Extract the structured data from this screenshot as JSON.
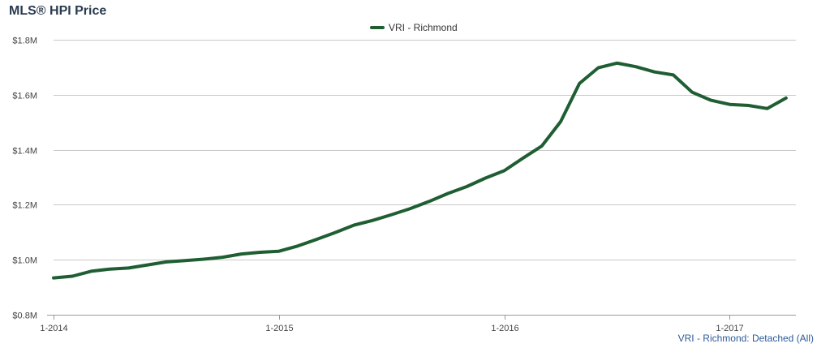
{
  "header": {
    "title": "MLS® HPI Price"
  },
  "footnote": "VRI - Richmond: Detached (All)",
  "chart_data": {
    "type": "line",
    "title": "MLS® HPI Price",
    "xlabel": "",
    "ylabel": "",
    "x_tick_labels": [
      "1-2014",
      "1-2015",
      "1-2016",
      "1-2017"
    ],
    "y_tick_labels": [
      "$0.8M",
      "$1.0M",
      "$1.2M",
      "$1.4M",
      "$1.6M",
      "$1.8M"
    ],
    "y_ticks": [
      0.8,
      1.0,
      1.2,
      1.4,
      1.6,
      1.8
    ],
    "ylim": [
      0.8,
      1.8
    ],
    "grid": "horizontal",
    "legend_position": "top-center",
    "series_color": "#1f5e33",
    "x": [
      "2014-01",
      "2014-02",
      "2014-03",
      "2014-04",
      "2014-05",
      "2014-06",
      "2014-07",
      "2014-08",
      "2014-09",
      "2014-10",
      "2014-11",
      "2014-12",
      "2015-01",
      "2015-02",
      "2015-03",
      "2015-04",
      "2015-05",
      "2015-06",
      "2015-07",
      "2015-08",
      "2015-09",
      "2015-10",
      "2015-11",
      "2015-12",
      "2016-01",
      "2016-02",
      "2016-03",
      "2016-04",
      "2016-05",
      "2016-06",
      "2016-07",
      "2016-08",
      "2016-09",
      "2016-10",
      "2016-11",
      "2016-12",
      "2017-01",
      "2017-02",
      "2017-03",
      "2017-04"
    ],
    "series": [
      {
        "name": "VRI - Richmond",
        "values": [
          0.934,
          0.94,
          0.958,
          0.966,
          0.97,
          0.981,
          0.992,
          0.997,
          1.002,
          1.009,
          1.021,
          1.027,
          1.031,
          1.05,
          1.074,
          1.099,
          1.126,
          1.143,
          1.164,
          1.186,
          1.212,
          1.241,
          1.266,
          1.297,
          1.324,
          1.37,
          1.414,
          1.502,
          1.641,
          1.698,
          1.715,
          1.702,
          1.683,
          1.672,
          1.609,
          1.58,
          1.565,
          1.561,
          1.55,
          1.588
        ]
      }
    ]
  }
}
